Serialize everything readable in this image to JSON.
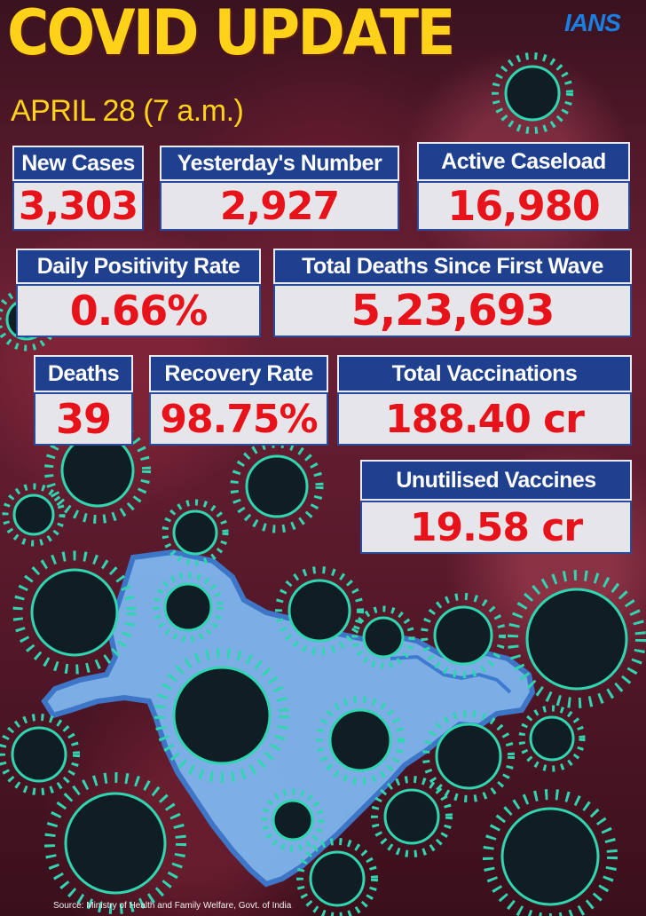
{
  "header": {
    "title": "COVID UPDATE",
    "date": "APRIL 28 (7 a.m.)",
    "logo": "IANS"
  },
  "stats": [
    {
      "label": "New Cases",
      "value": "3,303"
    },
    {
      "label": "Yesterday's Number",
      "value": "2,927"
    },
    {
      "label": "Active Caseload",
      "value": "16,980"
    },
    {
      "label": "Daily Positivity Rate",
      "value": "0.66%"
    },
    {
      "label": "Total Deaths Since First Wave",
      "value": "5,23,693"
    },
    {
      "label": "Deaths",
      "value": "39"
    },
    {
      "label": "Recovery Rate",
      "value": "98.75%"
    },
    {
      "label": "Total Vaccinations",
      "value": "188.40 cr"
    },
    {
      "label": "Unutilised Vaccines",
      "value": "19.58 cr"
    }
  ],
  "footer": {
    "source": "Source: Ministry of Health and Family Welfare, Govt. of India"
  },
  "colors": {
    "title": "#ffd21a",
    "label_bg": "#1f3f8f",
    "value_bg": "#e6e6ea",
    "value_text": "#e8121a",
    "map": "#7fb6f0",
    "virus": "#2fd6b0"
  }
}
